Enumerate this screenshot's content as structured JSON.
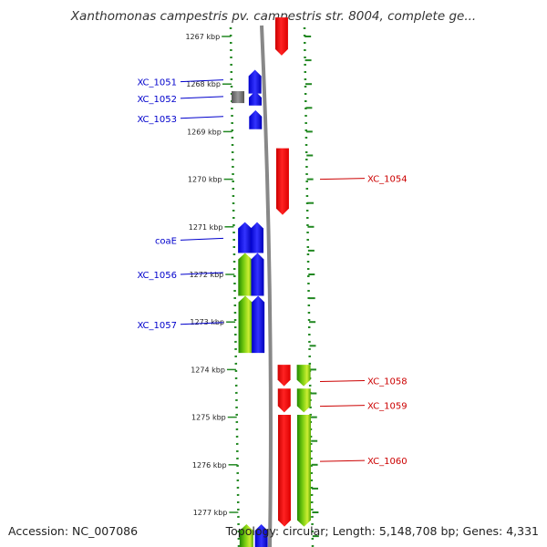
{
  "title": "Xanthomonas campestris pv. campestris str. 8004, complete ge...",
  "footer": {
    "accession": "Accession: NC_007086",
    "topology": "Topology: circular; Length: 5,148,708 bp; Genes: 4,331"
  },
  "colors": {
    "forward_strand": "#0000ff",
    "reverse_strand": "#ff0000",
    "other_feature": "#777777",
    "cds_gradient": "#66cc00",
    "backbone": "#888888",
    "dotted_guides": "#228822",
    "blue_label": "#0000cc",
    "red_label": "#cc0000"
  },
  "scale": {
    "unit": "kbp",
    "ticks": [
      {
        "kbp": 1267,
        "label": "1267 kbp"
      },
      {
        "kbp": 1268,
        "label": "1268 kbp"
      },
      {
        "kbp": 1269,
        "label": "1269 kbp"
      },
      {
        "kbp": 1270,
        "label": "1270 kbp"
      },
      {
        "kbp": 1271,
        "label": "1271 kbp"
      },
      {
        "kbp": 1272,
        "label": "1272 kbp"
      },
      {
        "kbp": 1273,
        "label": "1273 kbp"
      },
      {
        "kbp": 1274,
        "label": "1274 kbp"
      },
      {
        "kbp": 1275,
        "label": "1275 kbp"
      },
      {
        "kbp": 1276,
        "label": "1276 kbp"
      },
      {
        "kbp": 1277,
        "label": "1277 kbp"
      }
    ]
  },
  "features": {
    "reverse_outer": [
      {
        "start": 1266.6,
        "end": 1267.4
      },
      {
        "start": 1269.35,
        "end": 1270.75
      },
      {
        "start": 1273.9,
        "end": 1274.35
      },
      {
        "start": 1274.4,
        "end": 1274.9
      },
      {
        "start": 1274.95,
        "end": 1277.3
      }
    ],
    "reverse_inner": [
      {
        "start": 1273.9,
        "end": 1274.35
      },
      {
        "start": 1274.4,
        "end": 1274.9
      },
      {
        "start": 1274.95,
        "end": 1277.3
      }
    ],
    "forward_inner": [
      {
        "start": 1267.7,
        "end": 1268.2
      },
      {
        "start": 1268.15,
        "end": 1268.45
      },
      {
        "start": 1268.55,
        "end": 1268.95
      },
      {
        "start": 1270.9,
        "end": 1271.55
      },
      {
        "start": 1271.55,
        "end": 1272.45
      },
      {
        "start": 1272.45,
        "end": 1273.65
      },
      {
        "start": 1277.25,
        "end": 1277.8
      }
    ],
    "forward_outer": [
      {
        "start": 1270.9,
        "end": 1271.55
      },
      {
        "start": 1271.55,
        "end": 1272.45
      },
      {
        "start": 1272.45,
        "end": 1273.65
      },
      {
        "start": 1277.25,
        "end": 1277.8
      }
    ],
    "other": [
      {
        "start": 1268.15,
        "end": 1268.4
      }
    ]
  },
  "gene_labels": {
    "forward": [
      {
        "name": "XC_1051",
        "kbp": 1267.95
      },
      {
        "name": "XC_1052",
        "kbp": 1268.3
      },
      {
        "name": "XC_1053",
        "kbp": 1268.72
      },
      {
        "name": "coaE",
        "kbp": 1271.28
      },
      {
        "name": "XC_1056",
        "kbp": 1272.0
      },
      {
        "name": "XC_1057",
        "kbp": 1273.05
      }
    ],
    "reverse": [
      {
        "name": "XC_1054",
        "kbp": 1270.0
      },
      {
        "name": "XC_1058",
        "kbp": 1274.25
      },
      {
        "name": "XC_1059",
        "kbp": 1274.77
      },
      {
        "name": "XC_1060",
        "kbp": 1275.93
      }
    ]
  }
}
